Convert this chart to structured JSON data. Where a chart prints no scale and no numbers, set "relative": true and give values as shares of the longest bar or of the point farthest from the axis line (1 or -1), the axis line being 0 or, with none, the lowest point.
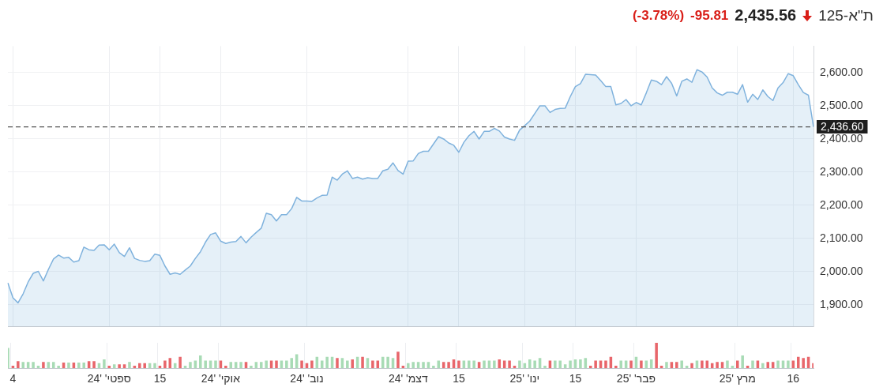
{
  "chart_data": [
    {
      "type": "area",
      "title": "ת\"א-125",
      "annotations": [
        "2,435.56",
        "-95.81",
        "(-3.78%)"
      ],
      "categories": [
        null,
        null,
        null,
        null,
        null,
        null,
        null,
        null,
        null,
        null,
        null,
        null,
        null,
        null,
        null,
        null,
        null,
        null,
        null,
        null,
        null,
        null,
        null,
        null,
        null,
        null,
        null,
        null,
        null,
        null,
        null,
        null,
        null,
        null,
        null,
        null,
        null,
        null,
        null,
        null,
        null,
        null,
        null,
        null,
        null,
        null,
        null,
        null,
        null,
        null,
        null,
        null,
        null,
        null,
        null,
        null,
        null,
        null,
        null,
        null,
        null,
        null,
        null,
        null,
        null,
        null,
        null,
        null,
        null,
        null,
        null,
        null,
        null,
        null,
        null,
        null,
        null,
        null,
        null,
        null,
        null,
        null,
        null,
        null,
        null,
        null,
        null,
        null,
        null,
        null,
        null,
        null,
        null,
        null,
        null,
        null,
        null,
        null,
        null,
        null,
        null,
        null,
        null,
        null,
        null,
        null,
        null,
        null,
        null,
        null,
        null,
        null,
        null,
        null,
        null,
        null,
        null,
        null,
        null,
        null,
        null,
        null,
        null,
        null,
        null,
        null,
        null,
        null,
        null,
        null,
        null,
        null,
        null,
        null,
        null,
        null,
        null,
        null,
        null,
        null,
        null,
        null,
        null,
        null,
        null,
        null,
        null,
        null,
        null,
        null,
        null,
        null,
        null,
        null,
        null,
        null,
        null,
        null,
        null,
        null
      ],
      "values": [
        1966,
        1921,
        1906,
        1933,
        1969,
        1995,
        2001,
        1972,
        2007,
        2038,
        2050,
        2041,
        2043,
        2029,
        2033,
        2074,
        2066,
        2064,
        2080,
        2081,
        2066,
        2083,
        2057,
        2046,
        2072,
        2040,
        2034,
        2031,
        2033,
        2053,
        2049,
        2017,
        1992,
        1996,
        1992,
        2005,
        2017,
        2040,
        2060,
        2089,
        2112,
        2117,
        2092,
        2085,
        2089,
        2091,
        2106,
        2087,
        2104,
        2118,
        2131,
        2176,
        2172,
        2153,
        2172,
        2172,
        2190,
        2224,
        2213,
        2213,
        2212,
        2222,
        2230,
        2231,
        2285,
        2276,
        2294,
        2304,
        2281,
        2285,
        2279,
        2283,
        2281,
        2281,
        2304,
        2309,
        2328,
        2305,
        2294,
        2333,
        2334,
        2356,
        2363,
        2363,
        2385,
        2407,
        2400,
        2388,
        2381,
        2360,
        2390,
        2410,
        2423,
        2400,
        2423,
        2423,
        2432,
        2424,
        2406,
        2400,
        2396,
        2427,
        2440,
        2454,
        2477,
        2500,
        2500,
        2480,
        2489,
        2492,
        2493,
        2528,
        2558,
        2567,
        2595,
        2594,
        2593,
        2576,
        2558,
        2558,
        2503,
        2507,
        2519,
        2500,
        2510,
        2503,
        2539,
        2578,
        2574,
        2564,
        2588,
        2568,
        2530,
        2574,
        2581,
        2571,
        2609,
        2602,
        2587,
        2554,
        2539,
        2532,
        2541,
        2541,
        2535,
        2564,
        2511,
        2535,
        2519,
        2548,
        2528,
        2516,
        2554,
        2570,
        2597,
        2591,
        2564,
        2540,
        2532,
        2436.6
      ],
      "color": "#7fb2dd",
      "ylim": [
        1834,
        2680
      ],
      "yticks": [
        {
          "value": 1900,
          "label": "1,900.00"
        },
        {
          "value": 2000,
          "label": "2,000.00"
        },
        {
          "value": 2100,
          "label": "2,100.00"
        },
        {
          "value": 2200,
          "label": "2,200.00"
        },
        {
          "value": 2300,
          "label": "2,300.00"
        },
        {
          "value": 2400,
          "label": "2,400.00"
        },
        {
          "value": 2500,
          "label": "2,500.00"
        },
        {
          "value": 2600,
          "label": "2,600.00"
        }
      ],
      "ref_lines": [
        {
          "axis": "y",
          "value": 2436.6,
          "label": "2,436.60",
          "color": "#555555",
          "line_style": "dashed"
        }
      ],
      "grid": true,
      "tick_labels": "y"
    },
    {
      "type": "bar",
      "relative": true,
      "tick_labels": "x",
      "grid": "x",
      "categories": [
        null,
        "4",
        null,
        null,
        null,
        null,
        null,
        null,
        null,
        null,
        null,
        null,
        null,
        null,
        null,
        null,
        null,
        null,
        null,
        null,
        "ספטי' '24",
        null,
        null,
        null,
        null,
        null,
        null,
        null,
        null,
        null,
        "15",
        null,
        null,
        null,
        null,
        null,
        null,
        null,
        null,
        null,
        null,
        null,
        "אוקי' '24",
        null,
        null,
        null,
        null,
        null,
        null,
        null,
        null,
        null,
        null,
        null,
        null,
        null,
        null,
        null,
        null,
        "נוב' '24",
        null,
        null,
        null,
        null,
        null,
        null,
        null,
        null,
        null,
        null,
        null,
        null,
        null,
        null,
        null,
        null,
        null,
        null,
        null,
        "דצמ' '24",
        null,
        null,
        null,
        null,
        null,
        null,
        null,
        null,
        null,
        "15",
        null,
        null,
        null,
        null,
        null,
        null,
        null,
        null,
        null,
        null,
        null,
        null,
        "ינו' '25",
        null,
        null,
        null,
        null,
        null,
        null,
        null,
        null,
        null,
        "15",
        null,
        null,
        null,
        null,
        null,
        null,
        null,
        null,
        null,
        null,
        null,
        "פבר' '25",
        null,
        null,
        null,
        null,
        null,
        null,
        null,
        null,
        null,
        null,
        null,
        null,
        null,
        null,
        null,
        null,
        null,
        null,
        null,
        "מרץ '25",
        null,
        null,
        null,
        null,
        null,
        null,
        null,
        null,
        null,
        null,
        "16",
        null,
        null,
        null,
        null
      ],
      "values": [
        0.8,
        0.1,
        0.28,
        0.25,
        0.25,
        0.25,
        0.1,
        0.25,
        0.25,
        0.25,
        0.1,
        0.22,
        0.22,
        0.22,
        0.22,
        0.22,
        0.28,
        0.28,
        0.2,
        0.35,
        0.1,
        0.15,
        0.15,
        0.15,
        0.25,
        0.1,
        0.2,
        0.2,
        0.2,
        0.2,
        0.1,
        0.3,
        0.4,
        0.2,
        0.45,
        0.1,
        0.25,
        0.3,
        0.5,
        0.3,
        0.3,
        0.3,
        0.3,
        0.1,
        0.25,
        0.25,
        0.25,
        0.25,
        0.1,
        0.25,
        0.25,
        0.3,
        0.3,
        0.3,
        0.3,
        0.3,
        0.4,
        0.55,
        0.3,
        0.2,
        0.3,
        0.45,
        0.3,
        0.45,
        0.45,
        0.4,
        0.4,
        0.3,
        0.35,
        0.45,
        0.45,
        0.4,
        0.3,
        0.3,
        0.45,
        0.45,
        0.4,
        0.65,
        0.1,
        0.2,
        0.25,
        0.25,
        0.25,
        0.25,
        0.1,
        0.3,
        0.25,
        0.25,
        0.35,
        0.3,
        0.3,
        0.3,
        0.3,
        0.25,
        0.3,
        0.3,
        0.3,
        0.35,
        0.3,
        0.3,
        0.1,
        0.3,
        0.2,
        0.35,
        0.3,
        0.4,
        0.1,
        0.3,
        0.3,
        0.3,
        0.15,
        0.3,
        0.35,
        0.35,
        0.4,
        0.1,
        0.3,
        0.3,
        0.3,
        0.45,
        0.1,
        0.3,
        0.3,
        0.3,
        0.45,
        0.3,
        0.3,
        0.35,
        1,
        0.1,
        0.25,
        0.25,
        0.25,
        0.3,
        0.1,
        0.2,
        0.3,
        0.3,
        0.3,
        0.2,
        0.25,
        0.25,
        0.3,
        0.1,
        0.3,
        0.5,
        0.1,
        0.3,
        0.3,
        0.2,
        0.25,
        0.25,
        0.3,
        0.3,
        0.3,
        0.3,
        0.45,
        0.4,
        0.45,
        0.2
      ],
      "colors": [
        "#a8dbb5",
        "#e8666b",
        "#e8666b",
        "#a8dbb5",
        "#a8dbb5",
        "#a8dbb5",
        "#a8dbb5",
        "#e8666b",
        "#a8dbb5",
        "#a8dbb5",
        "#a8dbb5",
        "#e8666b",
        "#a8dbb5",
        "#e8666b",
        "#a8dbb5",
        "#a8dbb5",
        "#e8666b",
        "#e8666b",
        "#a8dbb5",
        "#a8dbb5",
        "#e8666b",
        "#a8dbb5",
        "#e8666b",
        "#e8666b",
        "#a8dbb5",
        "#e8666b",
        "#e8666b",
        "#e8666b",
        "#a8dbb5",
        "#a8dbb5",
        "#e8666b",
        "#e8666b",
        "#e8666b",
        "#a8dbb5",
        "#e8666b",
        "#a8dbb5",
        "#a8dbb5",
        "#a8dbb5",
        "#a8dbb5",
        "#a8dbb5",
        "#a8dbb5",
        "#a8dbb5",
        "#e8666b",
        "#e8666b",
        "#a8dbb5",
        "#a8dbb5",
        "#a8dbb5",
        "#e8666b",
        "#a8dbb5",
        "#a8dbb5",
        "#a8dbb5",
        "#a8dbb5",
        "#e8666b",
        "#e8666b",
        "#a8dbb5",
        "#a8dbb5",
        "#a8dbb5",
        "#a8dbb5",
        "#e8666b",
        "#e8666b",
        "#e8666b",
        "#a8dbb5",
        "#a8dbb5",
        "#a8dbb5",
        "#a8dbb5",
        "#e8666b",
        "#a8dbb5",
        "#a8dbb5",
        "#e8666b",
        "#a8dbb5",
        "#e8666b",
        "#a8dbb5",
        "#e8666b",
        "#e8666b",
        "#a8dbb5",
        "#a8dbb5",
        "#a8dbb5",
        "#e8666b",
        "#e8666b",
        "#a8dbb5",
        "#a8dbb5",
        "#a8dbb5",
        "#a8dbb5",
        "#a8dbb5",
        "#a8dbb5",
        "#a8dbb5",
        "#e8666b",
        "#e8666b",
        "#e8666b",
        "#e8666b",
        "#a8dbb5",
        "#a8dbb5",
        "#a8dbb5",
        "#e8666b",
        "#a8dbb5",
        "#a8dbb5",
        "#a8dbb5",
        "#e8666b",
        "#e8666b",
        "#e8666b",
        "#e8666b",
        "#a8dbb5",
        "#a8dbb5",
        "#a8dbb5",
        "#a8dbb5",
        "#a8dbb5",
        "#a8dbb5",
        "#e8666b",
        "#a8dbb5",
        "#a8dbb5",
        "#a8dbb5",
        "#a8dbb5",
        "#a8dbb5",
        "#a8dbb5",
        "#a8dbb5",
        "#e8666b",
        "#e8666b",
        "#e8666b",
        "#e8666b",
        "#e8666b",
        "#e8666b",
        "#a8dbb5",
        "#a8dbb5",
        "#e8666b",
        "#a8dbb5",
        "#e8666b",
        "#a8dbb5",
        "#a8dbb5",
        "#e8666b",
        "#e8666b",
        "#a8dbb5",
        "#e8666b",
        "#e8666b",
        "#a8dbb5",
        "#a8dbb5",
        "#e8666b",
        "#a8dbb5",
        "#e8666b",
        "#e8666b",
        "#e8666b",
        "#e8666b",
        "#e8666b",
        "#a8dbb5",
        "#a8dbb5",
        "#e8666b",
        "#a8dbb5",
        "#e8666b",
        "#a8dbb5",
        "#e8666b",
        "#a8dbb5",
        "#e8666b",
        "#e8666b",
        "#a8dbb5",
        "#a8dbb5",
        "#a8dbb5",
        "#e8666b",
        "#e8666b",
        "#e8666b",
        "#e8666b",
        "#e8666b"
      ]
    }
  ]
}
